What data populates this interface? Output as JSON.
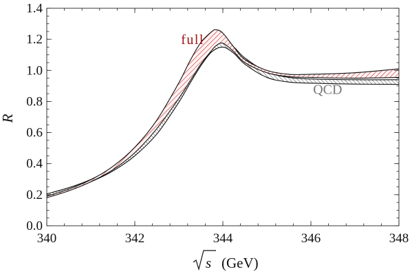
{
  "chart_data": {
    "type": "line",
    "title": "",
    "xlabel": "(GeV)",
    "xlabel_symbol": "s",
    "ylabel": "R",
    "xlim": [
      340,
      348
    ],
    "ylim": [
      0.0,
      1.4
    ],
    "xticks": [
      "340",
      "342",
      "344",
      "346",
      "348"
    ],
    "yticks": [
      "0.0",
      "0.2",
      "0.4",
      "0.6",
      "0.8",
      "1.0",
      "1.2",
      "1.4"
    ],
    "grid": false,
    "series": [
      {
        "name": "full",
        "color": "#b01818",
        "hatch": "diagonal-red",
        "x": [
          340.0,
          340.5,
          341.0,
          341.5,
          342.0,
          342.5,
          343.0,
          343.25,
          343.5,
          343.75,
          343.85,
          344.0,
          344.25,
          344.5,
          345.0,
          345.5,
          346.0,
          347.0,
          348.0
        ],
        "upper": [
          0.19,
          0.236,
          0.296,
          0.382,
          0.505,
          0.68,
          0.92,
          1.06,
          1.18,
          1.25,
          1.262,
          1.24,
          1.15,
          1.07,
          1.0,
          0.975,
          0.975,
          0.985,
          1.01
        ],
        "lower": [
          0.18,
          0.225,
          0.283,
          0.36,
          0.47,
          0.625,
          0.82,
          0.93,
          1.04,
          1.13,
          1.16,
          1.175,
          1.12,
          1.05,
          0.985,
          0.96,
          0.955,
          0.95,
          0.955
        ]
      },
      {
        "name": "QCD",
        "color": "#333333",
        "hatch": "diagonal-black",
        "x": [
          340.0,
          340.5,
          341.0,
          341.5,
          342.0,
          342.5,
          343.0,
          343.25,
          343.5,
          343.75,
          344.0,
          344.25,
          344.5,
          345.0,
          345.5,
          346.0,
          347.0,
          348.0
        ],
        "upper": [
          0.205,
          0.245,
          0.298,
          0.372,
          0.475,
          0.63,
          0.85,
          0.98,
          1.1,
          1.175,
          1.195,
          1.15,
          1.08,
          0.99,
          0.955,
          0.945,
          0.94,
          0.94
        ],
        "lower": [
          0.19,
          0.232,
          0.283,
          0.352,
          0.45,
          0.59,
          0.795,
          0.915,
          1.03,
          1.12,
          1.15,
          1.11,
          1.04,
          0.955,
          0.925,
          0.918,
          0.912,
          0.91
        ]
      }
    ],
    "annotations": [
      {
        "text": "full",
        "color": "#a01414",
        "x": 343.05,
        "y": 1.2
      },
      {
        "text": "QCD",
        "color": "#777777",
        "x": 346.05,
        "y": 0.88
      }
    ]
  }
}
